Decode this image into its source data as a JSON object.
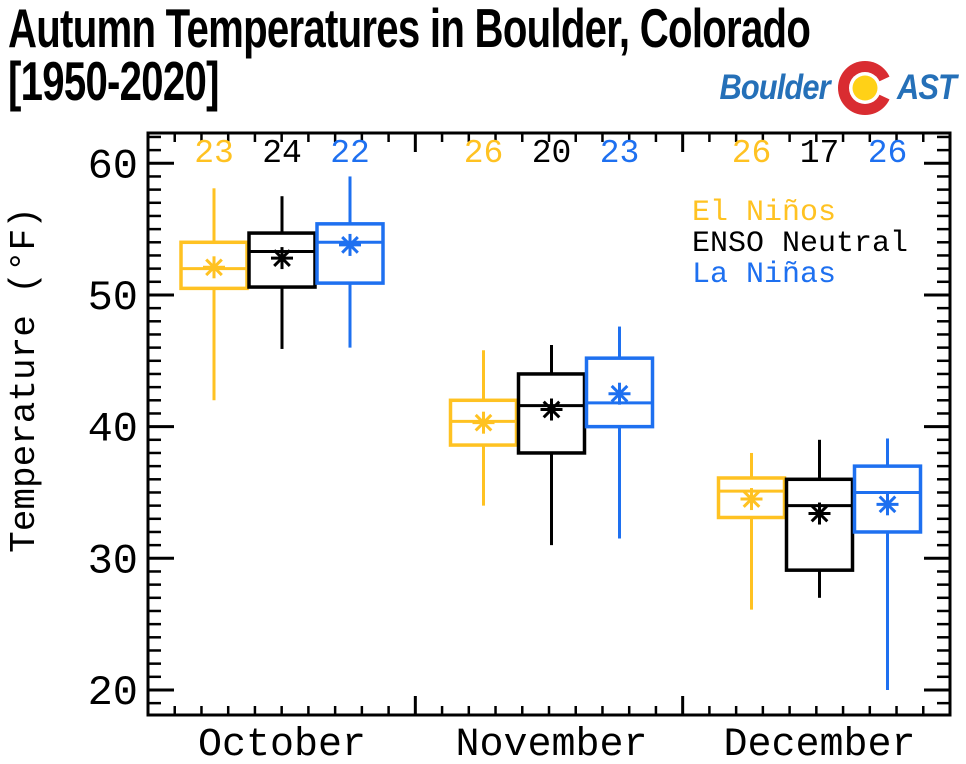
{
  "header": {
    "title_line1": "Autumn Temperatures in Boulder, Colorado",
    "title_line2": "[1950-2020]",
    "logo": {
      "text_before": "Boulder",
      "text_after": "AST",
      "blue": "#2570B8",
      "red": "#D92C31",
      "yellow": "#FFD117"
    }
  },
  "chart_data": {
    "type": "grouped_boxplot",
    "title": "Autumn Temperatures in Boulder, Colorado [1950-2020]",
    "ylabel": "Temperature (°F)",
    "xlabel": "",
    "categories": [
      "October",
      "November",
      "December"
    ],
    "yticks": [
      20,
      30,
      40,
      50,
      60
    ],
    "ylim": [
      18.1,
      62.3
    ],
    "y_minor_step": 1,
    "x_minor_ticks_per_group": 10,
    "grid": false,
    "legend_position": "upper right",
    "legend": [
      "El Niños",
      "ENSO Neutral",
      "La Niñas"
    ],
    "series": [
      {
        "name": "El Niños",
        "color": "#FFC222",
        "counts": [
          23,
          26,
          26
        ],
        "boxes": [
          {
            "low": 42.0,
            "q1": 50.5,
            "median": 52.0,
            "mean": 52.1,
            "q3": 54.0,
            "high": 58.1
          },
          {
            "low": 34.0,
            "q1": 38.6,
            "median": 40.4,
            "mean": 40.3,
            "q3": 42.0,
            "high": 45.8
          },
          {
            "low": 26.1,
            "q1": 33.1,
            "median": 35.1,
            "mean": 34.5,
            "q3": 36.1,
            "high": 38.0
          }
        ]
      },
      {
        "name": "ENSO Neutral",
        "color": "#000000",
        "counts": [
          24,
          20,
          17
        ],
        "boxes": [
          {
            "low": 45.9,
            "q1": 50.6,
            "median": 53.3,
            "mean": 52.8,
            "q3": 54.7,
            "high": 57.5
          },
          {
            "low": 31.0,
            "q1": 38.0,
            "median": 41.6,
            "mean": 41.3,
            "q3": 44.0,
            "high": 46.2
          },
          {
            "low": 27.0,
            "q1": 29.1,
            "median": 34.0,
            "mean": 33.4,
            "q3": 36.0,
            "high": 39.0
          }
        ]
      },
      {
        "name": "La Niñas",
        "color": "#1E70F0",
        "counts": [
          22,
          23,
          26
        ],
        "boxes": [
          {
            "low": 46.0,
            "q1": 50.9,
            "median": 54.0,
            "mean": 53.8,
            "q3": 55.4,
            "high": 59.0
          },
          {
            "low": 31.5,
            "q1": 40.0,
            "median": 41.8,
            "mean": 42.5,
            "q3": 45.2,
            "high": 47.6
          },
          {
            "low": 20.0,
            "q1": 32.0,
            "median": 35.0,
            "mean": 34.1,
            "q3": 37.0,
            "high": 39.1
          }
        ]
      }
    ]
  }
}
